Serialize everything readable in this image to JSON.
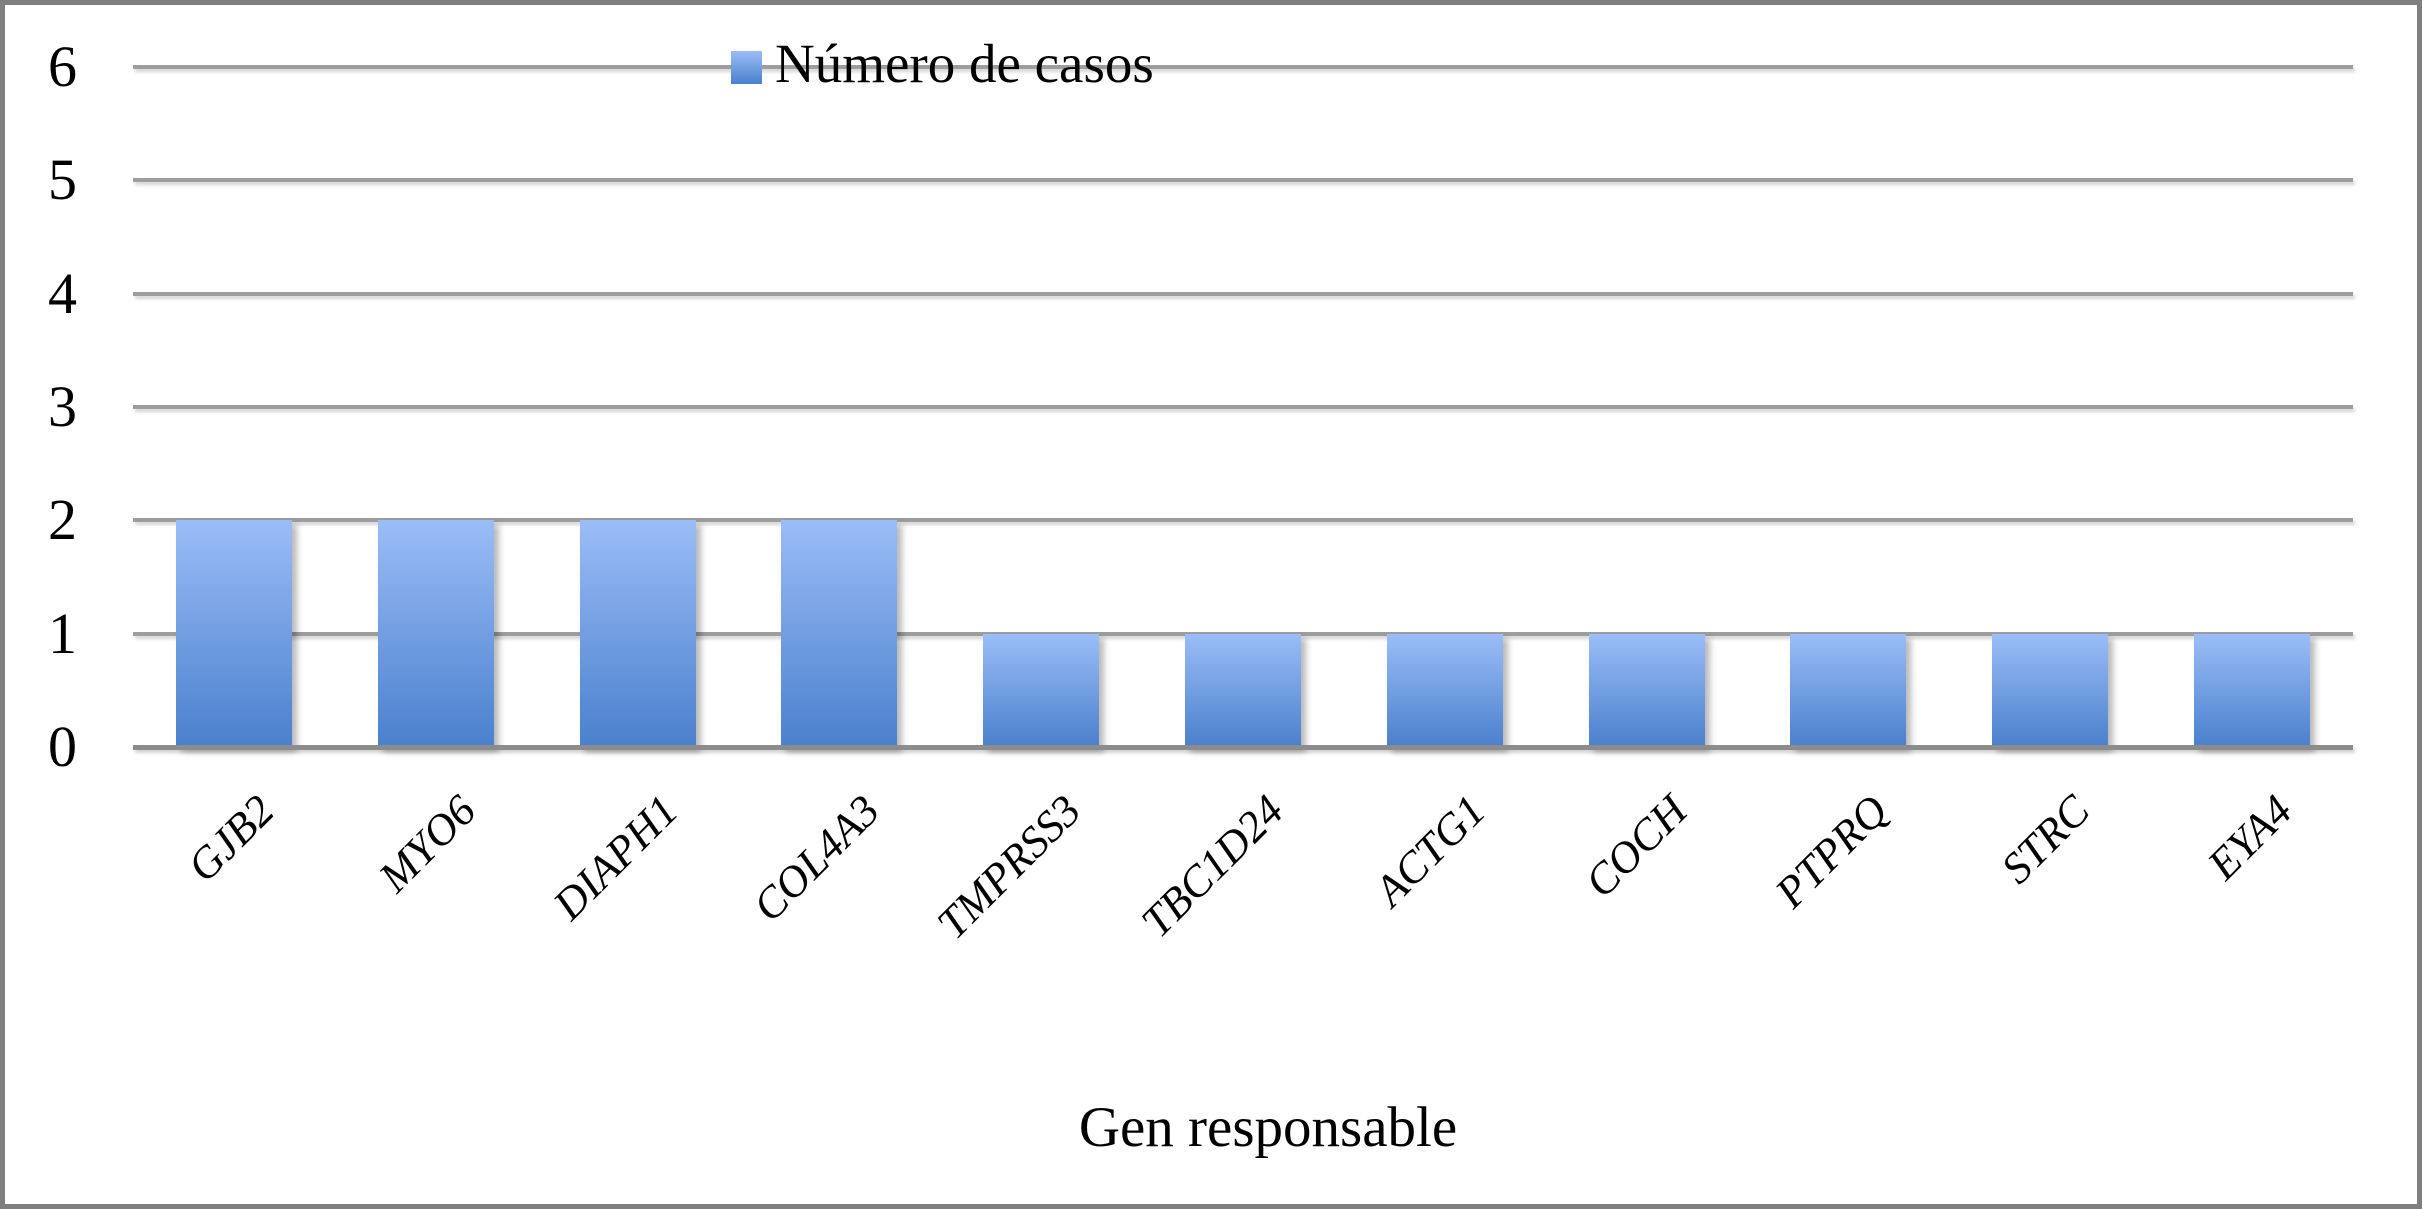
{
  "chart_data": {
    "type": "bar",
    "title": "",
    "categories": [
      "GJB2",
      "MYO6",
      "DIAPH1",
      "COL4A3",
      "TMPRSS3",
      "TBC1D24",
      "ACTG1",
      "COCH",
      "PTPRQ",
      "STRC",
      "EYA4"
    ],
    "series": [
      {
        "name": "Número de casos",
        "values": [
          2,
          2,
          2,
          2,
          1,
          1,
          1,
          1,
          1,
          1,
          1
        ]
      }
    ],
    "xlabel": "Gen responsable",
    "ylabel": "",
    "ylim": [
      0,
      6
    ],
    "yticks": [
      0,
      1,
      2,
      3,
      4,
      5,
      6
    ],
    "grid": true,
    "legend": {
      "label": "Número de casos",
      "position": "top-center",
      "marker": "square-icon"
    }
  },
  "colors": {
    "bar_gradient_top": "#9bbdf7",
    "bar_gradient_bottom": "#4a80cd",
    "gridline": "#9d9d9d",
    "axis_line": "#8c8c8c",
    "frame_border": "#7f7f7f",
    "text": "#000000",
    "background": "#ffffff"
  }
}
